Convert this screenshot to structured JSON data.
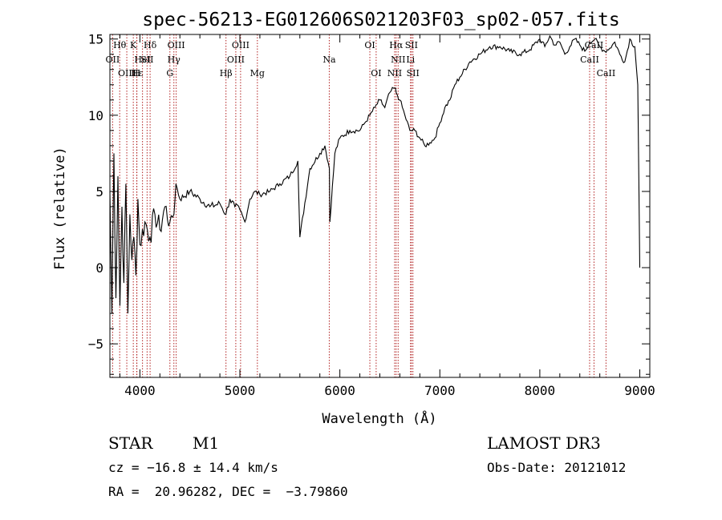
{
  "chart_data": {
    "type": "line",
    "title": "spec-56213-EG012606S021203F03_sp02-057.fits",
    "xlabel": "Wavelength (Å)",
    "ylabel": "Flux (relative)",
    "xlim": [
      3700,
      9100
    ],
    "ylim": [
      -7.2,
      15.3
    ],
    "x_ticks": [
      4000,
      5000,
      6000,
      7000,
      8000,
      9000
    ],
    "y_ticks": [
      -5,
      0,
      5,
      10,
      15
    ],
    "series": [
      {
        "name": "spectrum",
        "x": [
          3700,
          3720,
          3740,
          3760,
          3780,
          3800,
          3820,
          3840,
          3860,
          3880,
          3900,
          3920,
          3940,
          3960,
          3980,
          4000,
          4050,
          4100,
          4150,
          4200,
          4250,
          4300,
          4340,
          4360,
          4400,
          4500,
          4600,
          4700,
          4800,
          4860,
          4900,
          4950,
          5000,
          5050,
          5100,
          5150,
          5200,
          5300,
          5400,
          5500,
          5580,
          5600,
          5700,
          5800,
          5850,
          5895,
          5900,
          5950,
          6000,
          6100,
          6200,
          6250,
          6300,
          6350,
          6400,
          6450,
          6500,
          6550,
          6563,
          6600,
          6650,
          6700,
          6750,
          6800,
          6850,
          6900,
          6950,
          7000,
          7050,
          7100,
          7150,
          7200,
          7300,
          7400,
          7500,
          7600,
          7700,
          7800,
          7900,
          8000,
          8050,
          8100,
          8150,
          8200,
          8250,
          8300,
          8350,
          8400,
          8450,
          8500,
          8550,
          8600,
          8650,
          8700,
          8750,
          8800,
          8850,
          8900,
          8950,
          8980,
          9000
        ],
        "y": [
          5.0,
          -3.0,
          7.5,
          -2.0,
          6.0,
          -2.5,
          4.0,
          -1.0,
          5.5,
          -3.0,
          3.5,
          0.5,
          2.0,
          -0.5,
          4.5,
          1.5,
          3.0,
          2.0,
          3.5,
          2.5,
          4.0,
          3.0,
          3.5,
          5.5,
          4.5,
          5.0,
          4.5,
          4.0,
          4.2,
          3.5,
          4.5,
          4.0,
          3.8,
          3.0,
          4.5,
          5.0,
          4.8,
          5.0,
          5.5,
          6.0,
          7.0,
          2.0,
          6.5,
          7.5,
          8.0,
          6.5,
          3.0,
          7.5,
          8.5,
          9.0,
          9.0,
          9.5,
          10.0,
          10.5,
          11.0,
          10.5,
          11.5,
          11.8,
          11.5,
          11.0,
          10.0,
          9.0,
          9.0,
          8.5,
          8.0,
          8.2,
          8.5,
          9.5,
          10.5,
          11.0,
          12.0,
          12.5,
          13.5,
          14.0,
          14.5,
          14.5,
          14.2,
          14.0,
          14.3,
          15.0,
          14.5,
          15.2,
          14.6,
          14.8,
          14.0,
          14.5,
          15.0,
          14.6,
          14.2,
          14.8,
          15.0,
          14.5,
          14.2,
          14.4,
          14.8,
          14.0,
          13.5,
          15.0,
          14.5,
          12.0,
          0.0
        ]
      }
    ],
    "lines": [
      {
        "label": "Hθ",
        "wl": 3798
      },
      {
        "label": "OII",
        "wl": 3727
      },
      {
        "label": "OIII",
        "wl": 3869
      },
      {
        "label": "K",
        "wl": 3934
      },
      {
        "label": "H",
        "wl": 3968
      },
      {
        "label": "Hε",
        "wl": 3970
      },
      {
        "label": "HeI",
        "wl": 4026
      },
      {
        "label": "SII",
        "wl": 4072
      },
      {
        "label": "Hδ",
        "wl": 4102
      },
      {
        "label": "G",
        "wl": 4300
      },
      {
        "label": "Hγ",
        "wl": 4340
      },
      {
        "label": "OIII",
        "wl": 4363
      },
      {
        "label": "Hβ",
        "wl": 4861
      },
      {
        "label": "OIII",
        "wl": 4959
      },
      {
        "label": "OIII",
        "wl": 5007
      },
      {
        "label": "Mg",
        "wl": 5175
      },
      {
        "label": "Na",
        "wl": 5894
      },
      {
        "label": "OI",
        "wl": 6300
      },
      {
        "label": "OI",
        "wl": 6363
      },
      {
        "label": "NII",
        "wl": 6548
      },
      {
        "label": "Hα",
        "wl": 6563
      },
      {
        "label": "NII",
        "wl": 6583
      },
      {
        "label": "Li",
        "wl": 6707
      },
      {
        "label": "SII",
        "wl": 6716
      },
      {
        "label": "SII",
        "wl": 6731
      },
      {
        "label": "CaII",
        "wl": 8498
      },
      {
        "label": "CaII",
        "wl": 8542
      },
      {
        "label": "CaII",
        "wl": 8662
      }
    ],
    "line_labels_display": [
      {
        "text": "Hθ",
        "row": 0,
        "wl": 3798
      },
      {
        "text": "K",
        "row": 0,
        "wl": 3934
      },
      {
        "text": "Hδ",
        "row": 0,
        "wl": 4102
      },
      {
        "text": "OIII",
        "row": 0,
        "wl": 4363
      },
      {
        "text": "OIII",
        "row": 0,
        "wl": 5007
      },
      {
        "text": "OI",
        "row": 0,
        "wl": 6300
      },
      {
        "text": "Hα",
        "row": 0,
        "wl": 6563
      },
      {
        "text": "SII",
        "row": 0,
        "wl": 6716
      },
      {
        "text": "CaII",
        "row": 0,
        "wl": 8542
      },
      {
        "text": "OII",
        "row": 1,
        "wl": 3727
      },
      {
        "text": "HeI",
        "row": 1,
        "wl": 4026
      },
      {
        "text": "SII",
        "row": 1,
        "wl": 4072
      },
      {
        "text": "Hγ",
        "row": 1,
        "wl": 4340
      },
      {
        "text": "OIII",
        "row": 1,
        "wl": 4959
      },
      {
        "text": "Na",
        "row": 1,
        "wl": 5894
      },
      {
        "text": "NII",
        "row": 1,
        "wl": 6583
      },
      {
        "text": "Li",
        "row": 1,
        "wl": 6707
      },
      {
        "text": "CaII",
        "row": 1,
        "wl": 8498
      },
      {
        "text": "OIII",
        "row": 2,
        "wl": 3869
      },
      {
        "text": "Hε",
        "row": 2,
        "wl": 3970
      },
      {
        "text": "H",
        "row": 2,
        "wl": 3968
      },
      {
        "text": "G",
        "row": 2,
        "wl": 4300
      },
      {
        "text": "Hβ",
        "row": 2,
        "wl": 4861
      },
      {
        "text": "Mg",
        "row": 2,
        "wl": 5175
      },
      {
        "text": "OI",
        "row": 2,
        "wl": 6363
      },
      {
        "text": "NII",
        "row": 2,
        "wl": 6548
      },
      {
        "text": "SII",
        "row": 2,
        "wl": 6731
      },
      {
        "text": "CaII",
        "row": 2,
        "wl": 8662
      }
    ]
  },
  "info": {
    "class": "STAR",
    "subclass": "M1",
    "survey": "LAMOST DR3",
    "cz": "cz = −16.8 ± 14.4 km/s",
    "obs_date": "Obs-Date: 20121012",
    "coords": "RA =  20.96282, DEC =  −3.79860"
  },
  "colors": {
    "line_marker": "#b22222",
    "spectrum": "#000000"
  }
}
